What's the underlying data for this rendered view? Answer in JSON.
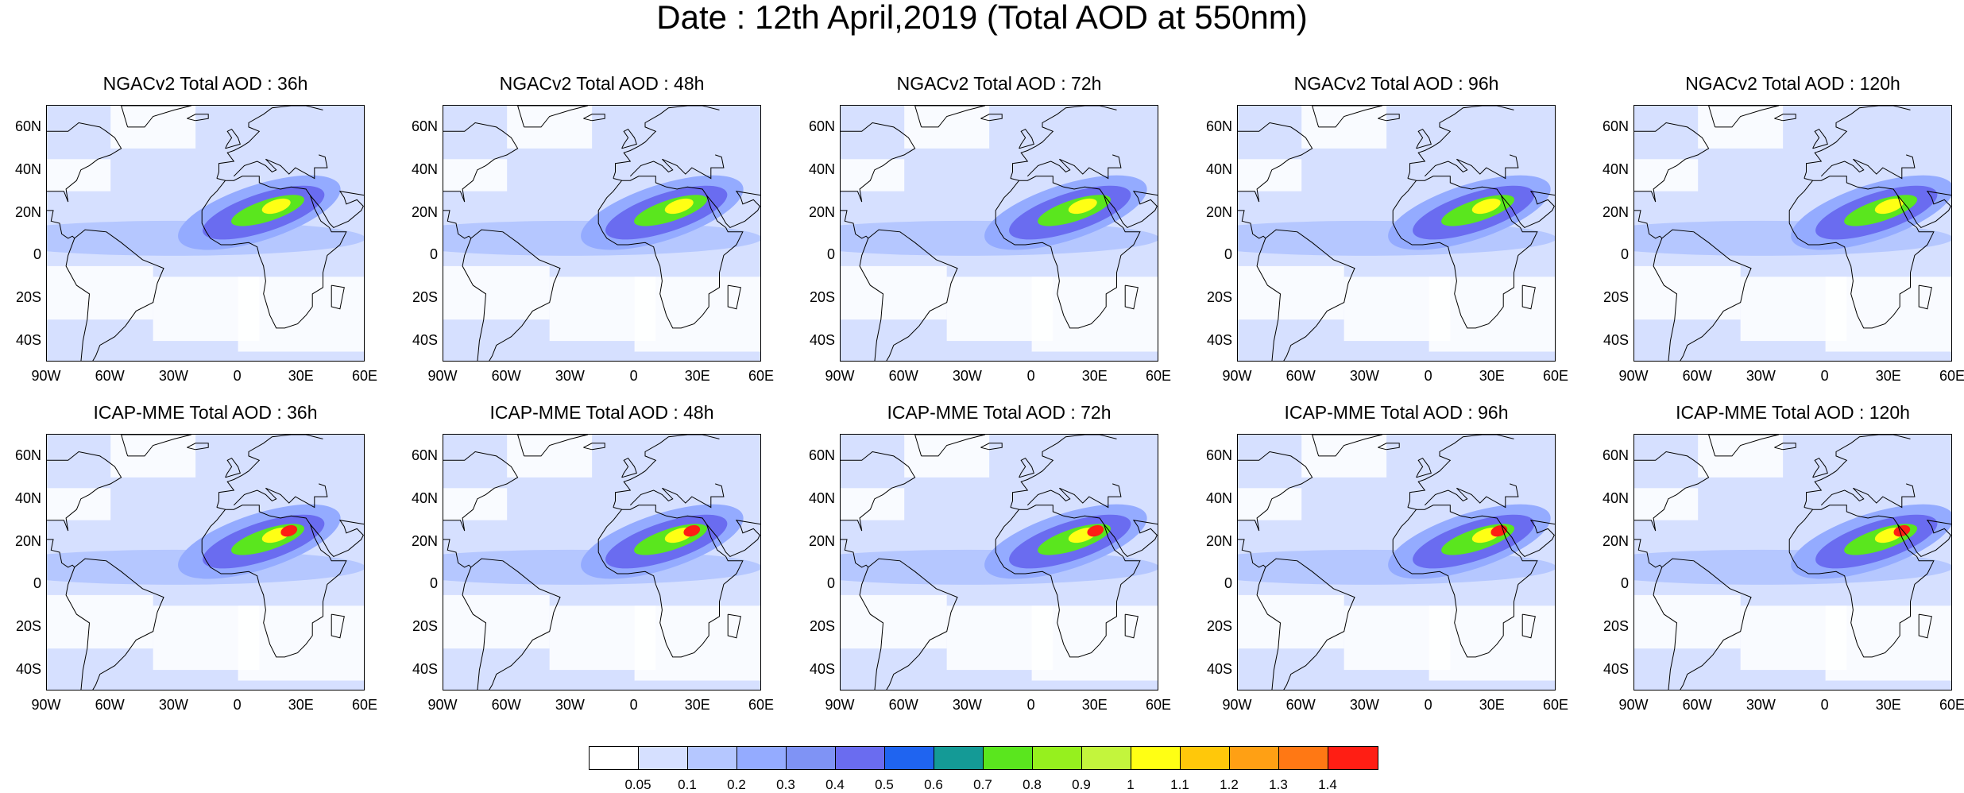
{
  "title": "Date : 12th April,2019 (Total AOD at 550nm)",
  "panels": [
    {
      "title": "NGACv2 Total AOD : 36h"
    },
    {
      "title": "NGACv2 Total AOD : 48h"
    },
    {
      "title": "NGACv2 Total AOD : 72h"
    },
    {
      "title": "NGACv2 Total AOD : 96h"
    },
    {
      "title": "NGACv2 Total AOD : 120h"
    },
    {
      "title": "ICAP-MME Total AOD : 36h"
    },
    {
      "title": "ICAP-MME Total AOD : 48h"
    },
    {
      "title": "ICAP-MME Total AOD : 72h"
    },
    {
      "title": "ICAP-MME Total AOD : 96h"
    },
    {
      "title": "ICAP-MME Total AOD : 120h"
    }
  ],
  "lat_labels": [
    "60N",
    "40N",
    "20N",
    "0",
    "20S",
    "40S"
  ],
  "lon_labels": [
    "90W",
    "60W",
    "30W",
    "0",
    "30E",
    "60E"
  ],
  "colorbar": {
    "labels": [
      "0.05",
      "0.1",
      "0.2",
      "0.3",
      "0.4",
      "0.5",
      "0.6",
      "0.7",
      "0.8",
      "0.9",
      "1",
      "1.1",
      "1.2",
      "1.3",
      "1.4"
    ],
    "colors": [
      "#ffffff",
      "#d6e0ff",
      "#b5c7ff",
      "#94abff",
      "#7f93f5",
      "#6a6cf0",
      "#1f64f0",
      "#149a96",
      "#5ae61e",
      "#96f01e",
      "#c3f53c",
      "#ffff14",
      "#ffc80a",
      "#ffa014",
      "#ff7814",
      "#ff1e14"
    ]
  }
}
